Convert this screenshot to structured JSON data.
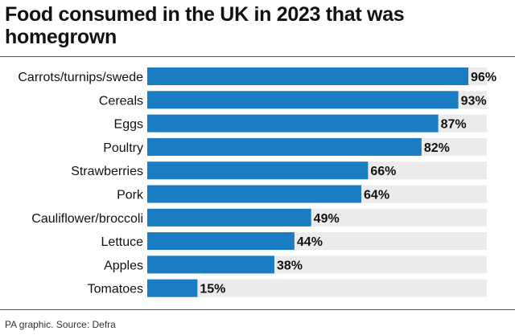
{
  "header": {
    "title": "Food consumed in the UK in 2023 that was homegrown"
  },
  "footer": {
    "source": "PA graphic. Source: Defra"
  },
  "colors": {
    "bar": "#1a7dc3",
    "track": "#ebebeb",
    "text": "#111111",
    "rule": "#555555"
  },
  "chart_data": {
    "type": "bar",
    "orientation": "horizontal",
    "title": "Food consumed in the UK in 2023 that was homegrown",
    "categories": [
      "Carrots/turnips/swede",
      "Cereals",
      "Eggs",
      "Poultry",
      "Strawberries",
      "Pork",
      "Cauliflower/broccoli",
      "Lettuce",
      "Apples",
      "Tomatoes"
    ],
    "values": [
      96,
      93,
      87,
      82,
      66,
      64,
      49,
      44,
      38,
      15
    ],
    "value_labels": [
      "96%",
      "93%",
      "87%",
      "82%",
      "66%",
      "64%",
      "49%",
      "44%",
      "38%",
      "15%"
    ],
    "xlim": [
      0,
      100
    ],
    "grid": false,
    "legend": "none"
  }
}
